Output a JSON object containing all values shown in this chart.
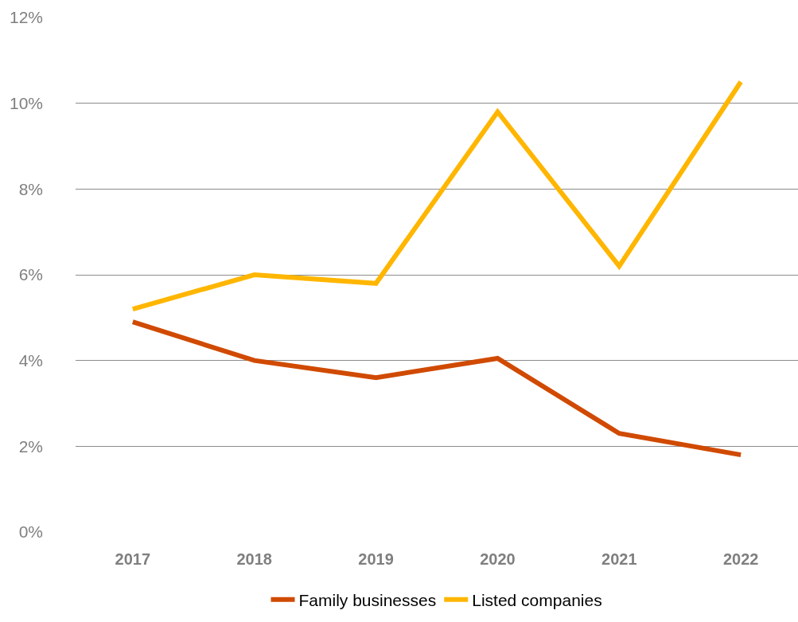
{
  "chart_data": {
    "type": "line",
    "categories": [
      "2017",
      "2018",
      "2019",
      "2020",
      "2021",
      "2022"
    ],
    "series": [
      {
        "name": "Family businesses",
        "color": "#d04a02",
        "values": [
          4.9,
          4.0,
          3.6,
          4.05,
          2.3,
          1.8
        ]
      },
      {
        "name": "Listed companies",
        "color": "#ffb600",
        "values": [
          5.2,
          6.0,
          5.8,
          9.8,
          6.2,
          10.5
        ]
      }
    ],
    "ylim": [
      0,
      12
    ],
    "yticks": [
      {
        "value": 0,
        "label": "0%"
      },
      {
        "value": 2,
        "label": "2%"
      },
      {
        "value": 4,
        "label": "4%"
      },
      {
        "value": 6,
        "label": "6%"
      },
      {
        "value": 8,
        "label": "8%"
      },
      {
        "value": 10,
        "label": "10%"
      },
      {
        "value": 12,
        "label": "12%"
      }
    ],
    "grid": "y",
    "legend": "bottom",
    "marker": "none",
    "line_style": "solid"
  }
}
